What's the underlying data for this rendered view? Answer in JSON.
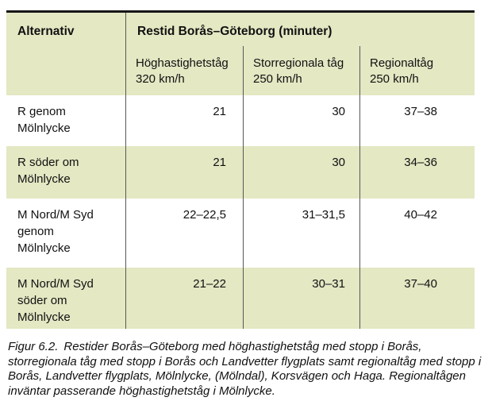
{
  "table": {
    "header": {
      "col1": "Alternativ",
      "title": "Restid Borås–Göteborg (minuter)",
      "subcolumns": [
        {
          "line1": "Höghastighetståg",
          "line2": "320 km/h"
        },
        {
          "line1": "Storregionala tåg",
          "line2": "250 km/h"
        },
        {
          "line1": "Regionaltåg",
          "line2": "250 km/h"
        }
      ]
    },
    "rows": [
      {
        "label": "R genom\nMölnlycke",
        "hoghastighetstag": "21",
        "storregionala": "30",
        "regionaltag": "37–38"
      },
      {
        "label": "R söder om\nMölnlycke",
        "hoghastighetstag": "21",
        "storregionala": "30",
        "regionaltag": "34–36"
      },
      {
        "label": "M Nord/M Syd\ngenom\nMölnlycke",
        "hoghastighetstag": "22–22,5",
        "storregionala": "31–31,5",
        "regionaltag": "40–42"
      },
      {
        "label": "M Nord/M Syd\nsöder om\nMölnlycke",
        "hoghastighetstag": "21–22",
        "storregionala": "30–31",
        "regionaltag": "37–40"
      }
    ]
  },
  "caption": {
    "label": "Figur 6.2.",
    "text": "Restider Borås–Göteborg med höghastighetståg med stopp i Borås, storregionala tåg med stopp i Borås och Landvetter flygplats samt regionaltåg med stopp i Borås, Landvetter flygplats, Mölnlycke, (Mölndal), Korsvägen och Haga. Regionaltågen inväntar passerande höghastighetståg i Mölnlycke."
  },
  "colors": {
    "header_and_alt_row_bg": "#e4e8c3",
    "divider_line": "#575757",
    "top_border": "#161616",
    "text": "#111111"
  }
}
